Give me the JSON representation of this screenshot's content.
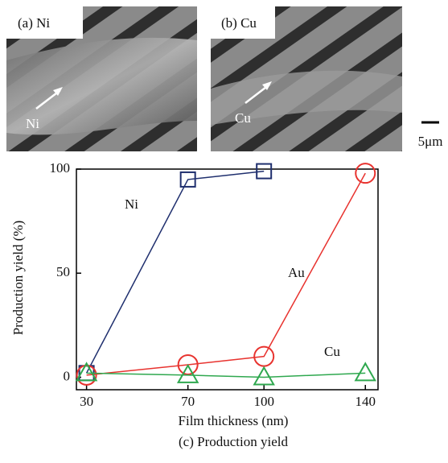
{
  "panels": [
    {
      "label": "(a) Ni",
      "arrow_label": "Ni"
    },
    {
      "label": "(b) Cu",
      "arrow_label": "Cu"
    }
  ],
  "scale_bar": "5μm",
  "chart_data": {
    "type": "line",
    "caption": "(c) Production yield",
    "x_label": "Film thickness (nm)",
    "y_label": "Production yield (%)",
    "x": [
      30,
      70,
      100,
      140
    ],
    "xlim": [
      26,
      145
    ],
    "xticks": [
      30,
      70,
      100,
      140
    ],
    "ylim": [
      -6,
      100
    ],
    "yticks": [
      0,
      50,
      100
    ],
    "series": [
      {
        "name": "Ni",
        "color": "#1f2f6e",
        "marker": "square",
        "values": [
          2,
          95,
          99,
          null
        ]
      },
      {
        "name": "Au",
        "color": "#e8332f",
        "marker": "circle",
        "values": [
          1,
          6,
          10,
          98
        ]
      },
      {
        "name": "Cu",
        "color": "#2fa84f",
        "marker": "triangle",
        "values": [
          2,
          1,
          0,
          2
        ]
      }
    ]
  }
}
